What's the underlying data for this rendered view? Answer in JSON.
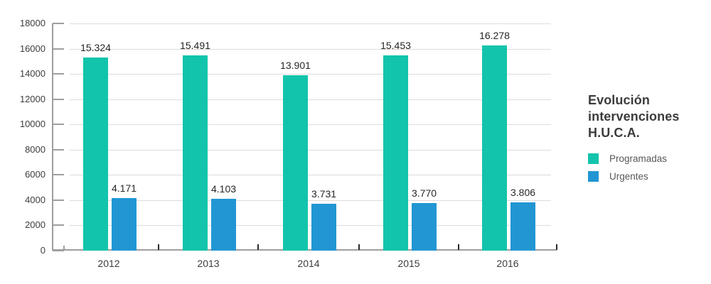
{
  "chart_data": {
    "type": "bar",
    "title": "Evolución intervenciones H.U.C.A.",
    "categories": [
      "2012",
      "2013",
      "2014",
      "2015",
      "2016"
    ],
    "series": [
      {
        "name": "Programadas",
        "color": "#12C4AB",
        "values": [
          15324,
          15491,
          13901,
          15453,
          16278
        ],
        "value_labels": [
          "15.324",
          "15.491",
          "13.901",
          "15.453",
          "16.278"
        ]
      },
      {
        "name": "Urgentes",
        "color": "#2196D3",
        "values": [
          4171,
          4103,
          3731,
          3770,
          3806
        ],
        "value_labels": [
          "4.171",
          "4.103",
          "3.731",
          "3.770",
          "3.806"
        ]
      }
    ],
    "y_axis": {
      "min": 0,
      "max": 18000,
      "step": 2000,
      "tick_labels": [
        "0",
        "2000",
        "4000",
        "6000",
        "8000",
        "10000",
        "12000",
        "14000",
        "16000",
        "18000"
      ]
    },
    "xlabel": "",
    "ylabel": "",
    "grid": true,
    "legend_position": "right"
  },
  "styles": {
    "background": "#ffffff",
    "grid_color": "#dcdcdc",
    "axis_color": "#9e9e9e",
    "boundary_tick_color": "#2b2b2b",
    "axis_label_color": "#3d3d3d",
    "value_label_color": "#262626",
    "title_color": "#3c3c3c",
    "legend_text_color": "#575757"
  }
}
